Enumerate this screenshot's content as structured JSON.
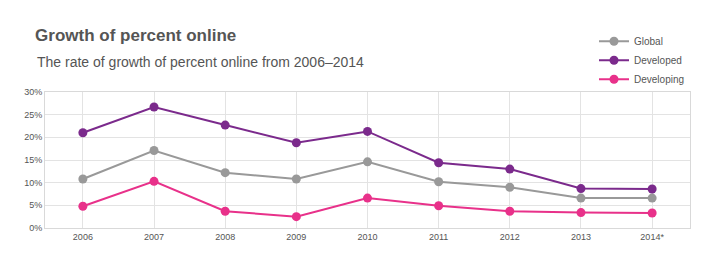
{
  "chart_data": {
    "type": "line",
    "title": "Growth of percent online",
    "subtitle": "The rate of growth of percent online from 2006–2014",
    "categories": [
      "2006",
      "2007",
      "2008",
      "2009",
      "2010",
      "2011",
      "2012",
      "2013",
      "2014*"
    ],
    "series": [
      {
        "name": "Global",
        "color": "#999999",
        "values": [
          10.8,
          17.1,
          12.2,
          10.8,
          14.6,
          10.2,
          9.0,
          6.6,
          6.6
        ]
      },
      {
        "name": "Developed",
        "color": "#7b2a8c",
        "values": [
          21.0,
          26.7,
          22.7,
          18.8,
          21.3,
          14.4,
          13.0,
          8.7,
          8.6
        ]
      },
      {
        "name": "Developing",
        "color": "#e8318a",
        "values": [
          4.8,
          10.3,
          3.7,
          2.5,
          6.6,
          4.9,
          3.7,
          3.4,
          3.3
        ]
      }
    ],
    "ylim": [
      0,
      30
    ],
    "yticks": [
      {
        "value": 0,
        "label": "0%"
      },
      {
        "value": 5,
        "label": "5%"
      },
      {
        "value": 10,
        "label": "10%"
      },
      {
        "value": 15,
        "label": "15%"
      },
      {
        "value": 20,
        "label": "20%"
      },
      {
        "value": 25,
        "label": "25%"
      },
      {
        "value": 30,
        "label": "30%"
      }
    ],
    "grid": true,
    "legend": "top-right",
    "marker": "circle",
    "line_style": "solid"
  }
}
